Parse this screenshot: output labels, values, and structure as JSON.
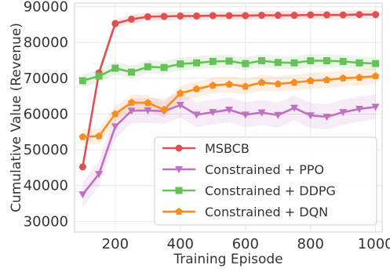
{
  "chart_data": {
    "type": "line",
    "title": "",
    "xlabel": "Training Episode",
    "ylabel": "Cumulative Value (Revenue)",
    "xlim": [
      75,
      1020
    ],
    "ylim": [
      27000,
      91000
    ],
    "xticks": [
      200,
      400,
      600,
      800,
      1000
    ],
    "yticks": [
      30000,
      40000,
      50000,
      60000,
      70000,
      80000,
      90000
    ],
    "grid": true,
    "legend_position": "lower-right",
    "x": [
      100,
      150,
      200,
      250,
      300,
      350,
      400,
      450,
      500,
      550,
      600,
      650,
      700,
      750,
      800,
      850,
      900,
      950,
      1000
    ],
    "series": [
      {
        "name": "MSBCB",
        "color": "#e05050",
        "marker": "circle",
        "values": [
          45200,
          71500,
          85300,
          86500,
          87200,
          87300,
          87400,
          87400,
          87500,
          87500,
          87500,
          87600,
          87600,
          87600,
          87700,
          87700,
          87700,
          87800,
          87800
        ],
        "band": 1200
      },
      {
        "name": "Constrained + PPO",
        "color": "#c070c0",
        "marker": "triangle-down",
        "values": [
          37500,
          43200,
          56500,
          60900,
          61000,
          60800,
          62500,
          59800,
          60500,
          61200,
          59800,
          60400,
          59700,
          61700,
          59600,
          59200,
          60500,
          61400,
          62000
        ],
        "band": 3500
      },
      {
        "name": "Constrained + DDPG",
        "color": "#66c156",
        "marker": "square",
        "values": [
          69300,
          70600,
          72800,
          71700,
          73200,
          73000,
          74000,
          74300,
          74700,
          74800,
          74100,
          74900,
          74400,
          74300,
          74900,
          74900,
          74700,
          74300,
          74100
        ],
        "band": 1800
      },
      {
        "name": "Constrained + DQN",
        "color": "#f78c22",
        "marker": "pentagon",
        "values": [
          53600,
          53800,
          60000,
          63200,
          63100,
          61200,
          65800,
          67000,
          68000,
          68300,
          67700,
          68800,
          68400,
          68800,
          69300,
          69500,
          70000,
          70200,
          70600
        ],
        "band": 2200
      }
    ]
  }
}
